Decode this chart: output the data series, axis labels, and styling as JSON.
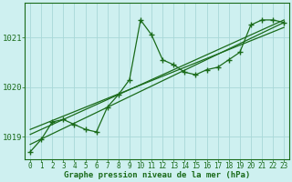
{
  "xlabel": "Graphe pression niveau de la mer (hPa)",
  "background_color": "#cef0f0",
  "grid_color": "#a8d8d8",
  "line_color": "#1a6b1a",
  "xlim": [
    -0.5,
    23.5
  ],
  "ylim": [
    1018.55,
    1021.7
  ],
  "yticks": [
    1019,
    1020,
    1021
  ],
  "xticks": [
    0,
    1,
    2,
    3,
    4,
    5,
    6,
    7,
    8,
    9,
    10,
    11,
    12,
    13,
    14,
    15,
    16,
    17,
    18,
    19,
    20,
    21,
    22,
    23
  ],
  "series1_x": [
    0,
    1,
    2,
    3,
    4,
    5,
    6,
    7,
    8,
    9,
    10,
    11,
    12,
    13,
    14,
    15,
    16,
    17,
    18,
    19,
    20,
    21,
    22,
    23
  ],
  "series1_y": [
    1018.7,
    1018.95,
    1019.3,
    1019.35,
    1019.25,
    1019.15,
    1019.1,
    1019.6,
    1019.85,
    1020.15,
    1021.35,
    1021.05,
    1020.55,
    1020.45,
    1020.3,
    1020.25,
    1020.35,
    1020.4,
    1020.55,
    1020.7,
    1021.25,
    1021.35,
    1021.35,
    1021.3
  ],
  "series2_x": [
    0,
    23
  ],
  "series2_y": [
    1018.85,
    1021.3
  ],
  "series3_x": [
    0,
    23
  ],
  "series3_y": [
    1019.05,
    1021.35
  ],
  "series4_x": [
    0,
    23
  ],
  "series4_y": [
    1019.15,
    1021.2
  ]
}
